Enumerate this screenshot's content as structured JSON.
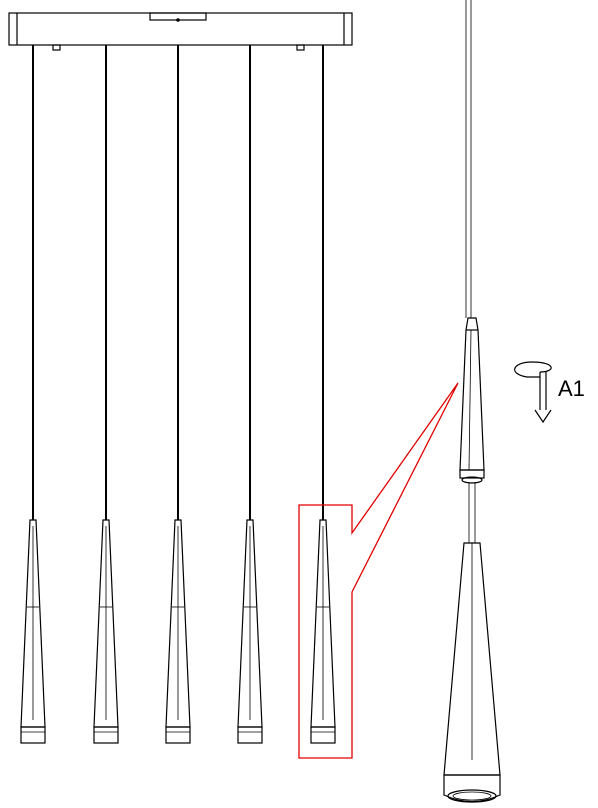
{
  "diagram": {
    "label_a1": "A1",
    "pendant_count": 5,
    "highlight_color": "#e00000",
    "line_color": "#000000",
    "rotate_icon": "rotate-arrow-icon"
  }
}
